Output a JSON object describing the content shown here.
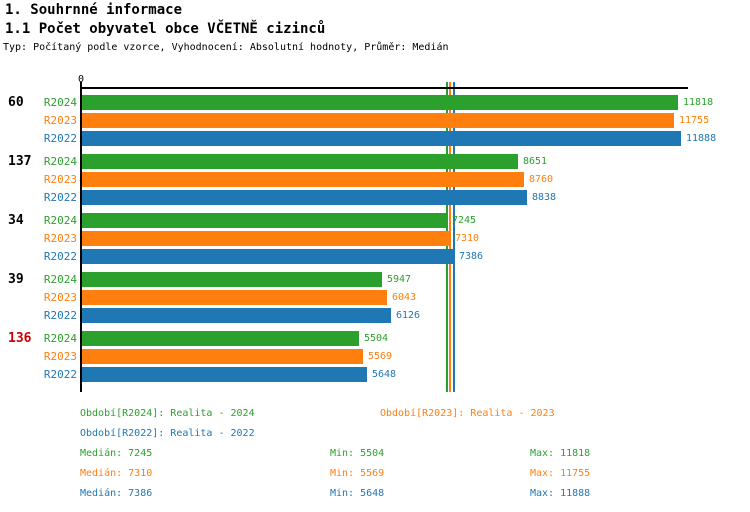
{
  "header": {
    "title": "1. Souhrnné informace",
    "subtitle": "1.1 Počet obyvatel obce VČETNĚ cizinců",
    "meta": "Typ: Počítaný podle vzorce, Vyhodnocení: Absolutní hodnoty, Průměr: Medián"
  },
  "colors": {
    "green": "#2CA02C",
    "orange": "#FF7F0E",
    "blue": "#1F77B4",
    "red": "#CC0000",
    "black": "#000000"
  },
  "chart_data": {
    "type": "bar",
    "orientation": "horizontal",
    "title": "1.1 Počet obyvatel obce VČETNĚ cizinců",
    "axis_zero_label": "0",
    "xlim": [
      0,
      12040
    ],
    "grid": false,
    "series_labels": [
      "R2024",
      "R2023",
      "R2022"
    ],
    "series_colors": [
      "green",
      "orange",
      "blue"
    ],
    "groups": [
      {
        "label": "60",
        "label_color": "black",
        "values": [
          11818,
          11755,
          11888
        ]
      },
      {
        "label": "137",
        "label_color": "black",
        "values": [
          8651,
          8760,
          8838
        ]
      },
      {
        "label": "34",
        "label_color": "black",
        "values": [
          7245,
          7310,
          7386
        ]
      },
      {
        "label": "39",
        "label_color": "black",
        "values": [
          5947,
          6043,
          6126
        ]
      },
      {
        "label": "136",
        "label_color": "red",
        "values": [
          5504,
          5569,
          5648
        ]
      }
    ],
    "median_lines": [
      {
        "value": 7245,
        "color": "green"
      },
      {
        "value": 7310,
        "color": "orange"
      },
      {
        "value": 7386,
        "color": "blue"
      }
    ]
  },
  "legend": {
    "items": [
      {
        "label": "Období[R2024]: Realita - 2024",
        "color": "green",
        "col": 0,
        "row": 0
      },
      {
        "label": "Období[R2023]: Realita - 2023",
        "color": "orange",
        "col": 1,
        "row": 0
      },
      {
        "label": "Období[R2022]: Realita - 2022",
        "color": "blue",
        "col": 0,
        "row": 1
      }
    ]
  },
  "stats": {
    "rows": [
      {
        "color": "green",
        "median": "Medián: 7245",
        "min": "Min: 5504",
        "max": "Max: 11818"
      },
      {
        "color": "orange",
        "median": "Medián: 7310",
        "min": "Min: 5569",
        "max": "Max: 11755"
      },
      {
        "color": "blue",
        "median": "Medián: 7386",
        "min": "Min: 5648",
        "max": "Max: 11888"
      }
    ]
  }
}
